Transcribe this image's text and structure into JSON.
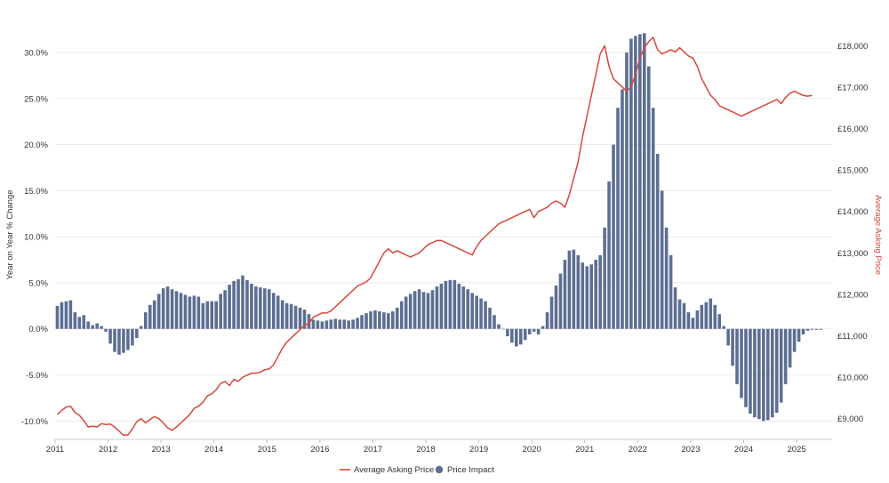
{
  "chart_data": {
    "type": "bar+line",
    "title": "",
    "x_axis": {
      "label": "",
      "range": [
        2011,
        2025.67
      ],
      "ticks": [
        "2011",
        "2012",
        "2013",
        "2014",
        "2015",
        "2016",
        "2017",
        "2018",
        "2019",
        "2020",
        "2021",
        "2022",
        "2023",
        "2024",
        "2025"
      ]
    },
    "y_left": {
      "label": "Year on Year % Change",
      "range": [
        -12,
        33
      ],
      "ticks": [
        "-10.0%",
        "-5.0%",
        "0.0%",
        "5.0%",
        "10.0%",
        "15.0%",
        "20.0%",
        "25.0%",
        "30.0%"
      ]
    },
    "y_right": {
      "label": "Average Asking Price",
      "range": [
        8500,
        18500
      ],
      "ticks": [
        "£9,000",
        "£10,000",
        "£11,000",
        "£12,000",
        "£13,000",
        "£14,000",
        "£15,000",
        "£16,000",
        "£17,000",
        "£18,000"
      ]
    },
    "legend": {
      "placement": "bottom-center",
      "items": [
        {
          "label": "Average Asking Price",
          "marker": "line",
          "color": "#d9473b"
        },
        {
          "label": "Price Impact",
          "marker": "circle",
          "color": "#5c6e92"
        }
      ]
    },
    "grid": true,
    "colors": {
      "bars": "#5c6e92",
      "line": "#d9473b",
      "right_axis_title": "#d9473b"
    },
    "series": [
      {
        "name": "Price Impact",
        "type": "bar",
        "axis": "left",
        "x_start": 2011.0,
        "x_step_months": 1,
        "values": [
          2.5,
          2.9,
          3.0,
          3.1,
          1.8,
          1.3,
          1.5,
          0.8,
          0.4,
          0.6,
          0.3,
          -0.3,
          -1.6,
          -2.5,
          -2.8,
          -2.6,
          -2.3,
          -1.8,
          -1.0,
          0.3,
          1.8,
          2.6,
          3.1,
          3.8,
          4.4,
          4.6,
          4.3,
          4.1,
          3.9,
          3.7,
          3.5,
          3.6,
          3.5,
          2.8,
          3.0,
          3.0,
          3.0,
          3.8,
          4.2,
          4.8,
          5.2,
          5.4,
          5.8,
          5.3,
          4.9,
          4.6,
          4.5,
          4.4,
          4.3,
          3.9,
          3.6,
          3.1,
          2.8,
          2.7,
          2.5,
          2.3,
          2.1,
          1.6,
          1.0,
          0.9,
          0.8,
          0.9,
          1.0,
          1.1,
          1.0,
          1.0,
          0.9,
          1.0,
          1.2,
          1.5,
          1.7,
          1.9,
          2.0,
          1.9,
          1.8,
          1.7,
          1.9,
          2.3,
          3.0,
          3.5,
          3.8,
          4.1,
          4.3,
          4.0,
          3.9,
          4.2,
          4.6,
          4.9,
          5.2,
          5.3,
          5.3,
          4.9,
          4.6,
          4.3,
          3.9,
          3.6,
          3.3,
          3.0,
          2.3,
          1.5,
          0.5,
          0.0,
          -0.8,
          -1.5,
          -1.9,
          -1.7,
          -1.2,
          -0.6,
          -0.3,
          -0.6,
          0.3,
          1.8,
          3.5,
          4.7,
          6.0,
          7.5,
          8.5,
          8.6,
          8.0,
          7.2,
          6.8,
          7.0,
          7.5,
          8.0,
          11.0,
          16.0,
          20.0,
          24.0,
          26.0,
          30.0,
          31.5,
          31.8,
          32.0,
          32.1,
          28.5,
          24.0,
          19.0,
          15.0,
          11.0,
          8.0,
          4.5,
          3.2,
          2.8,
          1.8,
          1.2,
          2.0,
          2.6,
          2.9,
          3.3,
          2.6,
          1.6,
          0.3,
          -1.8,
          -4.0,
          -6.0,
          -7.5,
          -8.5,
          -9.2,
          -9.6,
          -9.8,
          -10.0,
          -9.9,
          -9.6,
          -9.1,
          -8.0,
          -6.0,
          -4.2,
          -2.5,
          -1.4,
          -0.6,
          -0.2,
          -0.1,
          -0.1,
          -0.1
        ]
      },
      {
        "name": "Average Asking Price",
        "type": "line",
        "axis": "right",
        "x_start": 2011.0,
        "x_step_months": 1,
        "values": [
          9100,
          9200,
          9280,
          9300,
          9150,
          9080,
          8950,
          8800,
          8820,
          8800,
          8880,
          8860,
          8870,
          8800,
          8700,
          8600,
          8610,
          8750,
          8930,
          9000,
          8900,
          8980,
          9050,
          9000,
          8900,
          8780,
          8720,
          8800,
          8900,
          9000,
          9100,
          9250,
          9300,
          9400,
          9550,
          9600,
          9700,
          9850,
          9900,
          9800,
          9950,
          9900,
          10000,
          10050,
          10100,
          10100,
          10120,
          10180,
          10200,
          10300,
          10500,
          10700,
          10850,
          10950,
          11050,
          11150,
          11250,
          11300,
          11450,
          11500,
          11550,
          11550,
          11600,
          11700,
          11800,
          11900,
          12000,
          12100,
          12200,
          12250,
          12300,
          12400,
          12600,
          12800,
          13000,
          13100,
          13000,
          13050,
          13000,
          12950,
          12900,
          12950,
          13000,
          13100,
          13200,
          13250,
          13300,
          13300,
          13250,
          13200,
          13150,
          13100,
          13050,
          13000,
          12950,
          13150,
          13300,
          13400,
          13500,
          13600,
          13700,
          13750,
          13800,
          13850,
          13900,
          13950,
          14000,
          14050,
          13850,
          14000,
          14050,
          14100,
          14200,
          14250,
          14200,
          14100,
          14400,
          14800,
          15200,
          15800,
          16300,
          16800,
          17300,
          17800,
          18000,
          17500,
          17200,
          17100,
          17000,
          16900,
          17000,
          17300,
          17700,
          17950,
          18100,
          18200,
          17900,
          17800,
          17850,
          17900,
          17850,
          17950,
          17850,
          17750,
          17700,
          17500,
          17200,
          17000,
          16800,
          16700,
          16550,
          16500,
          16450,
          16400,
          16350,
          16300,
          16350,
          16400,
          16450,
          16500,
          16550,
          16600,
          16650,
          16700,
          16600,
          16750,
          16850,
          16900,
          16850,
          16800,
          16780,
          16800
        ]
      }
    ]
  }
}
